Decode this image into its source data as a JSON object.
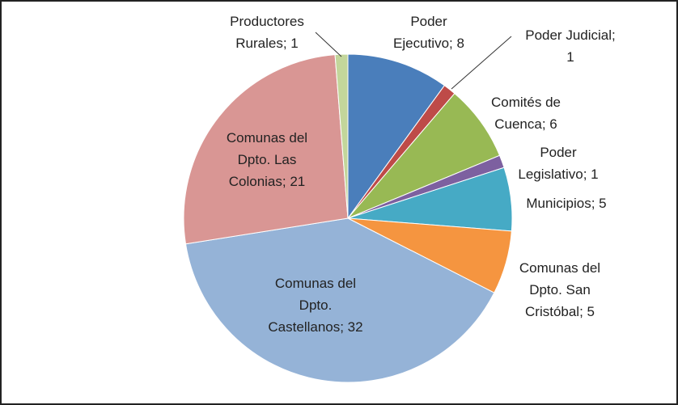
{
  "chart_data": {
    "type": "pie",
    "values": [
      8,
      1,
      6,
      1,
      5,
      5,
      32,
      21,
      1
    ],
    "value_labels": [
      "Poder Ejecutivo; 8",
      "Poder Judicial; 1",
      "Comités de Cuenca; 6",
      "Poder Legislativo; 1",
      "Municipios; 5",
      "Comunas del Dpto. San Cristóbal; 5",
      "Comunas del Dpto. Castellanos; 32",
      "Comunas del Dpto. Las Colonias; 21",
      "Productores Rurales; 1"
    ],
    "colors": [
      "#4a7ebb",
      "#be4b48",
      "#98b954",
      "#7d60a0",
      "#46aac5",
      "#f59540",
      "#95b3d7",
      "#d99694",
      "#c3d69b"
    ]
  }
}
